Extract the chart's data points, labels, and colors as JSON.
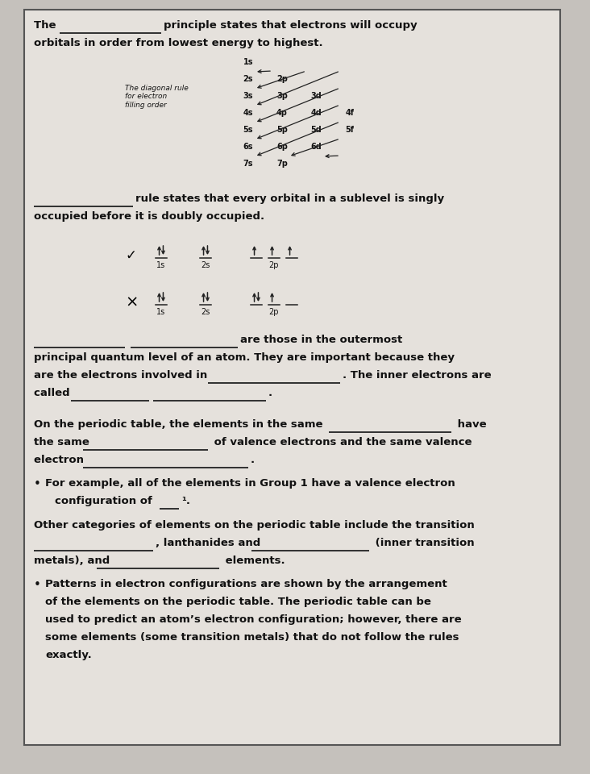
{
  "bg_color": "#c5c1bc",
  "card_bg": "#e5e1dc",
  "card_border": "#555555",
  "text_color": "#111111",
  "line_color": "#222222",
  "arrow_color": "#222222",
  "diagonal_rows": [
    [
      "1s"
    ],
    [
      "2s",
      "2p"
    ],
    [
      "3s",
      "3p",
      "3d"
    ],
    [
      "4s",
      "4p",
      "4d",
      "4f"
    ],
    [
      "5s",
      "5p",
      "5d",
      "5f"
    ],
    [
      "6s",
      "6p",
      "6d"
    ],
    [
      "7s",
      "7p"
    ]
  ],
  "diagonal_label": "The diagonal rule\nfor electron\nfilling order"
}
